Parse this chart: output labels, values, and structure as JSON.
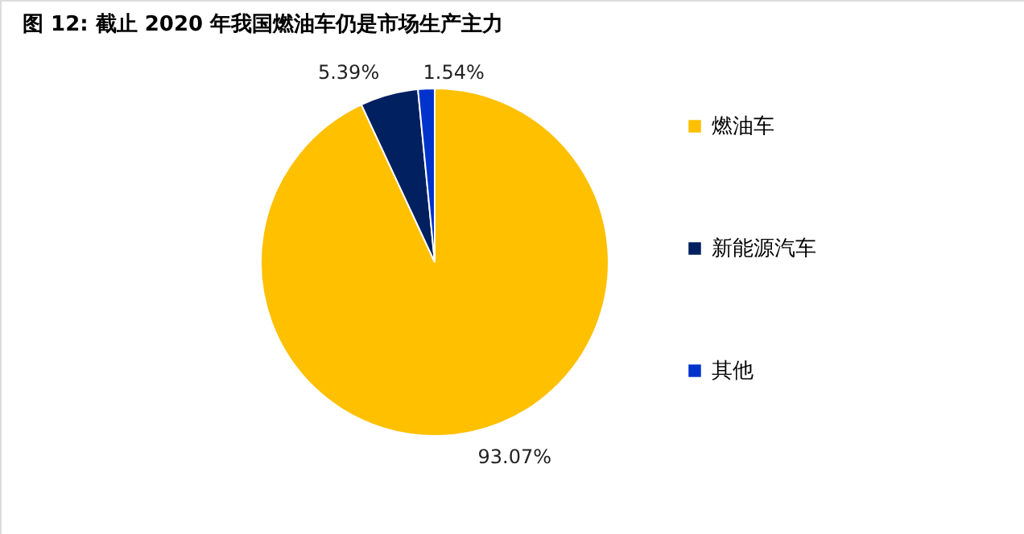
{
  "chart_data": {
    "type": "pie",
    "title": "图 12:  截止 2020 年我国燃油车仍是市场生产主力",
    "categories": [
      "燃油车",
      "新能源汽车",
      "其他"
    ],
    "values": [
      93.07,
      5.39,
      1.54
    ],
    "colors": [
      "#ffc000",
      "#002060",
      "#0033cc"
    ],
    "value_labels": [
      "93.07%",
      "5.39%",
      "1.54%"
    ],
    "legend": "right"
  }
}
